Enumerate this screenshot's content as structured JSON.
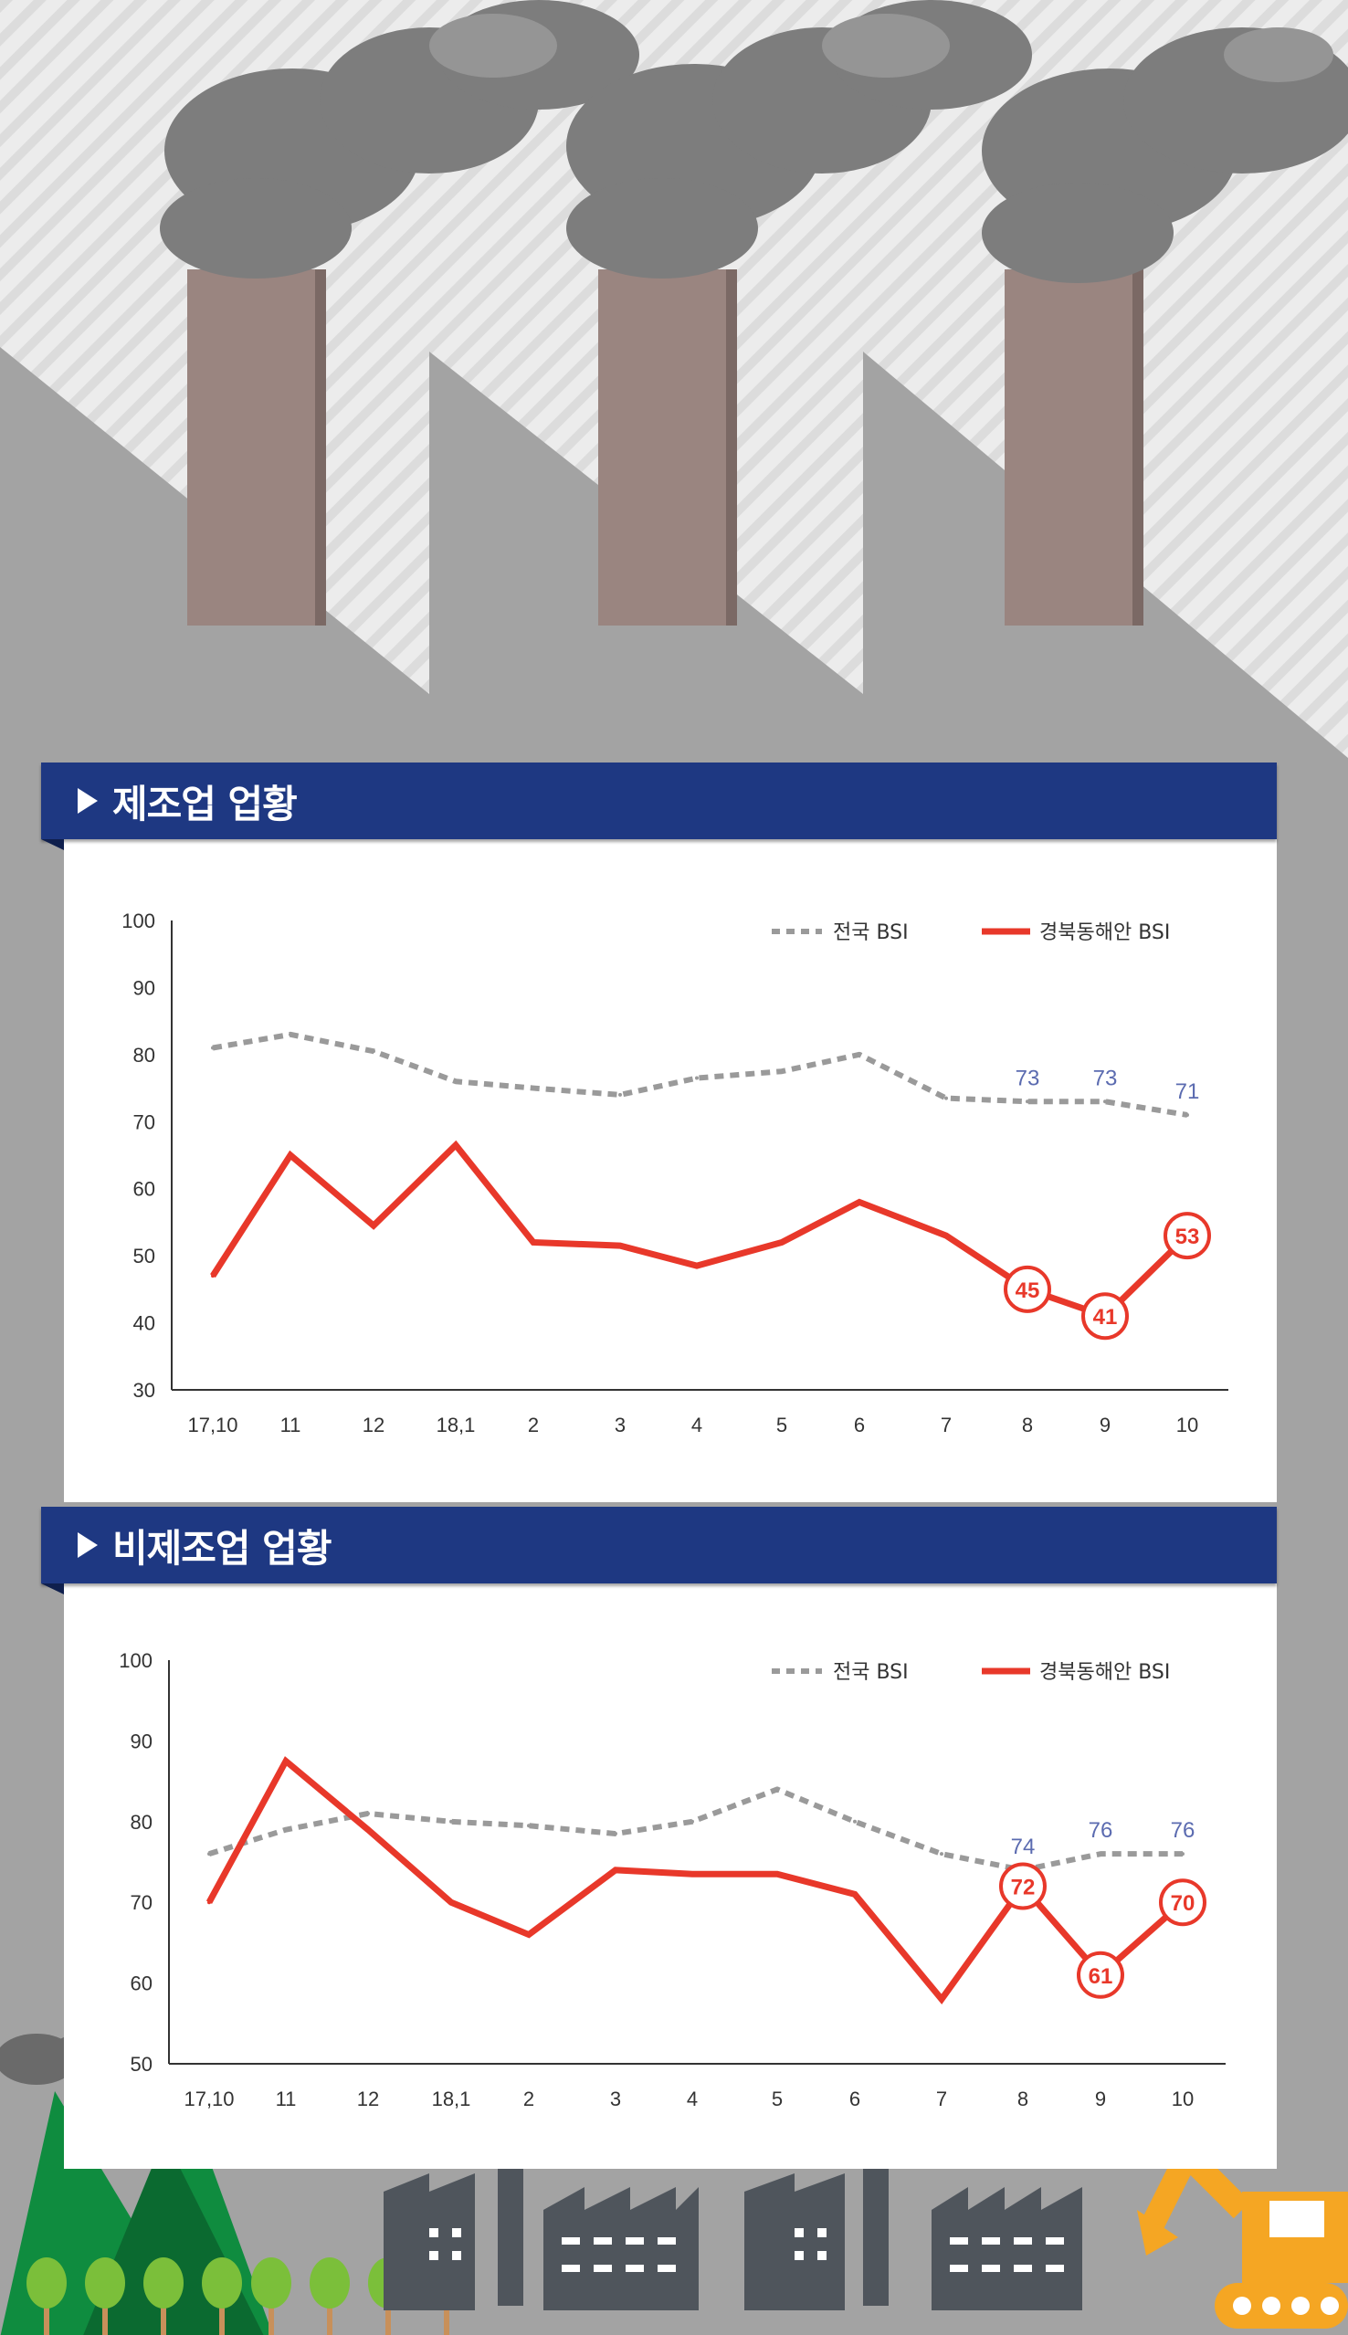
{
  "colors": {
    "header_bg": "#1e3882",
    "national": "#9a9a9a",
    "regional": "#e8382a",
    "national_label": "#5b6bb0",
    "background_building": "#a3a3a3",
    "smoke": "#7d7d7d",
    "chimney": "#9a8580"
  },
  "icons": [
    "factory-illustration",
    "smoke-cloud-icon",
    "mountain-icon",
    "tree-icon",
    "factory-icon",
    "excavator-icon"
  ],
  "chart_data": [
    {
      "type": "line",
      "title": "제조업 업황",
      "categories": [
        "17,10",
        "11",
        "12",
        "18,1",
        "2",
        "3",
        "4",
        "5",
        "6",
        "7",
        "8",
        "9",
        "10"
      ],
      "ylim": [
        30,
        100
      ],
      "yticks": [
        "100",
        "90",
        "80",
        "70",
        "60",
        "50",
        "40",
        "30"
      ],
      "grid": false,
      "legend_position": "top-right",
      "series": [
        {
          "name": "전국 BSI",
          "style": "dashed",
          "values": [
            81,
            83,
            80.5,
            76,
            75,
            74,
            76.5,
            77.5,
            80,
            73.5,
            73,
            73,
            71
          ],
          "labeled": [
            false,
            false,
            false,
            false,
            false,
            false,
            false,
            false,
            false,
            false,
            true,
            true,
            true
          ],
          "labels": [
            "",
            "",
            "",
            "",
            "",
            "",
            "",
            "",
            "",
            "",
            "73",
            "73",
            "71"
          ]
        },
        {
          "name": "경북동해안 BSI",
          "style": "solid",
          "values": [
            47,
            65,
            54.5,
            66.5,
            52,
            51.5,
            48.5,
            52,
            58,
            53,
            45,
            41,
            53
          ],
          "labeled": [
            false,
            false,
            false,
            false,
            false,
            false,
            false,
            false,
            false,
            false,
            true,
            true,
            true
          ],
          "labels": [
            "",
            "",
            "",
            "",
            "",
            "",
            "",
            "",
            "",
            "",
            "45",
            "41",
            "53"
          ]
        }
      ]
    },
    {
      "type": "line",
      "title": "비제조업 업황",
      "categories": [
        "17,10",
        "11",
        "12",
        "18,1",
        "2",
        "3",
        "4",
        "5",
        "6",
        "7",
        "8",
        "9",
        "10"
      ],
      "ylim": [
        50,
        100
      ],
      "yticks": [
        "100",
        "90",
        "80",
        "70",
        "60",
        "50"
      ],
      "grid": false,
      "legend_position": "top-right",
      "series": [
        {
          "name": "전국 BSI",
          "style": "dashed",
          "values": [
            76,
            79,
            81,
            80,
            79.5,
            78.5,
            80,
            84,
            80,
            76,
            74,
            76,
            76
          ],
          "labeled": [
            false,
            false,
            false,
            false,
            false,
            false,
            false,
            false,
            false,
            false,
            true,
            true,
            true
          ],
          "labels": [
            "",
            "",
            "",
            "",
            "",
            "",
            "",
            "",
            "",
            "",
            "74",
            "76",
            "76"
          ]
        },
        {
          "name": "경북동해안 BSI",
          "style": "solid",
          "values": [
            70,
            87.5,
            79,
            70,
            66,
            74,
            73.5,
            73.5,
            71,
            58,
            72,
            61,
            70
          ],
          "labeled": [
            false,
            false,
            false,
            false,
            false,
            false,
            false,
            false,
            false,
            false,
            true,
            true,
            true
          ],
          "labels": [
            "",
            "",
            "",
            "",
            "",
            "",
            "",
            "",
            "",
            "",
            "72",
            "61",
            "70"
          ]
        }
      ]
    }
  ]
}
